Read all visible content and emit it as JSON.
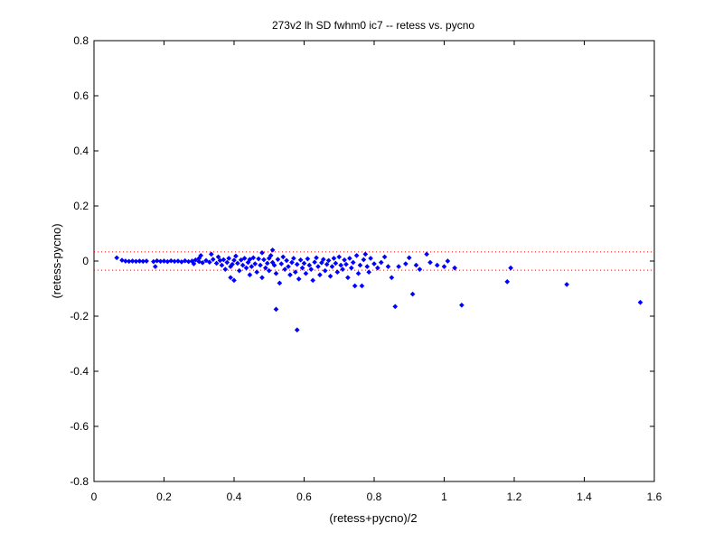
{
  "chart_data": {
    "type": "scatter",
    "title": "273v2 lh SD fwhm0 ic7 -- retess vs. pycno",
    "xlabel": "(retess+pycno)/2",
    "ylabel": "(retess-pycno)",
    "xlim": [
      0,
      1.6
    ],
    "ylim": [
      -0.8,
      0.8
    ],
    "xticks": [
      0,
      0.2,
      0.4,
      0.6,
      0.8,
      1,
      1.2,
      1.4,
      1.6
    ],
    "xtick_labels": [
      "0",
      "0.2",
      "0.4",
      "0.6",
      "0.8",
      "1",
      "1.2",
      "1.4",
      "1.6"
    ],
    "yticks": [
      -0.8,
      -0.6,
      -0.4,
      -0.2,
      0,
      0.2,
      0.4,
      0.6,
      0.8
    ],
    "ytick_labels": [
      "-0.8",
      "-0.6",
      "-0.4",
      "-0.2",
      "0",
      "0.2",
      "0.4",
      "0.6",
      "0.8"
    ],
    "grid": false,
    "reference_lines": [
      {
        "y": 0.033,
        "style": "dotted",
        "color": "#ff0000"
      },
      {
        "y": -0.033,
        "style": "dotted",
        "color": "#ff0000"
      }
    ],
    "marker_color": "#0000ff",
    "series": [
      {
        "points": [
          [
            0.065,
            0.012
          ],
          [
            0.08,
            0.003
          ],
          [
            0.09,
            0.0
          ],
          [
            0.1,
            -0.001
          ],
          [
            0.11,
            0.0
          ],
          [
            0.12,
            -0.001
          ],
          [
            0.13,
            0.0
          ],
          [
            0.14,
            -0.001
          ],
          [
            0.15,
            0.0
          ],
          [
            0.17,
            -0.002
          ],
          [
            0.175,
            -0.02
          ],
          [
            0.18,
            0.001
          ],
          [
            0.19,
            -0.001
          ],
          [
            0.2,
            0.0
          ],
          [
            0.21,
            -0.002
          ],
          [
            0.22,
            0.001
          ],
          [
            0.23,
            -0.001
          ],
          [
            0.24,
            0.0
          ],
          [
            0.25,
            -0.003
          ],
          [
            0.26,
            0.001
          ],
          [
            0.27,
            -0.002
          ],
          [
            0.28,
            0.0
          ],
          [
            0.285,
            -0.01
          ],
          [
            0.29,
            0.004
          ],
          [
            0.3,
            -0.002
          ],
          [
            0.3,
            0.01
          ],
          [
            0.305,
            0.02
          ],
          [
            0.31,
            -0.006
          ],
          [
            0.32,
            0.002
          ],
          [
            0.33,
            -0.004
          ],
          [
            0.335,
            0.025
          ],
          [
            0.34,
            0.006
          ],
          [
            0.35,
            -0.008
          ],
          [
            0.355,
            0.015
          ],
          [
            0.36,
            0.002
          ],
          [
            0.365,
            -0.015
          ],
          [
            0.37,
            0.005
          ],
          [
            0.375,
            -0.03
          ],
          [
            0.38,
            -0.005
          ],
          [
            0.385,
            0.01
          ],
          [
            0.39,
            -0.02
          ],
          [
            0.39,
            -0.06
          ],
          [
            0.395,
            -0.012
          ],
          [
            0.4,
            0.003
          ],
          [
            0.4,
            -0.07
          ],
          [
            0.405,
            0.018
          ],
          [
            0.41,
            -0.008
          ],
          [
            0.415,
            -0.035
          ],
          [
            0.42,
            0.004
          ],
          [
            0.425,
            -0.015
          ],
          [
            0.43,
            0.01
          ],
          [
            0.435,
            -0.025
          ],
          [
            0.44,
            -0.005
          ],
          [
            0.445,
            0.006
          ],
          [
            0.445,
            -0.05
          ],
          [
            0.45,
            -0.02
          ],
          [
            0.455,
            0.012
          ],
          [
            0.46,
            -0.01
          ],
          [
            0.465,
            -0.04
          ],
          [
            0.47,
            0.008
          ],
          [
            0.475,
            -0.015
          ],
          [
            0.48,
            0.03
          ],
          [
            0.48,
            -0.06
          ],
          [
            0.485,
            0.005
          ],
          [
            0.49,
            -0.025
          ],
          [
            0.495,
            -0.008
          ],
          [
            0.5,
            0.01
          ],
          [
            0.5,
            -0.035
          ],
          [
            0.505,
            0.02
          ],
          [
            0.51,
            -0.005
          ],
          [
            0.51,
            0.04
          ],
          [
            0.515,
            -0.015
          ],
          [
            0.52,
            -0.045
          ],
          [
            0.52,
            -0.175
          ],
          [
            0.525,
            0.006
          ],
          [
            0.53,
            -0.08
          ],
          [
            0.535,
            -0.01
          ],
          [
            0.54,
            0.015
          ],
          [
            0.545,
            -0.03
          ],
          [
            0.55,
            0.002
          ],
          [
            0.555,
            -0.02
          ],
          [
            0.56,
            -0.05
          ],
          [
            0.565,
            -0.005
          ],
          [
            0.57,
            0.01
          ],
          [
            0.575,
            -0.04
          ],
          [
            0.58,
            -0.012
          ],
          [
            0.58,
            -0.25
          ],
          [
            0.585,
            -0.065
          ],
          [
            0.59,
            0.004
          ],
          [
            0.595,
            -0.025
          ],
          [
            0.6,
            -0.008
          ],
          [
            0.605,
            -0.045
          ],
          [
            0.61,
            0.008
          ],
          [
            0.615,
            -0.015
          ],
          [
            0.62,
            -0.03
          ],
          [
            0.625,
            -0.07
          ],
          [
            0.63,
            -0.004
          ],
          [
            0.635,
            0.012
          ],
          [
            0.64,
            -0.02
          ],
          [
            0.645,
            -0.05
          ],
          [
            0.65,
            -0.006
          ],
          [
            0.655,
            0.006
          ],
          [
            0.66,
            -0.035
          ],
          [
            0.665,
            -0.012
          ],
          [
            0.67,
            0.002
          ],
          [
            0.675,
            -0.055
          ],
          [
            0.68,
            -0.02
          ],
          [
            0.685,
            0.01
          ],
          [
            0.69,
            -0.008
          ],
          [
            0.695,
            -0.04
          ],
          [
            0.7,
            0.015
          ],
          [
            0.705,
            -0.015
          ],
          [
            0.71,
            -0.03
          ],
          [
            0.715,
            0.004
          ],
          [
            0.72,
            -0.012
          ],
          [
            0.725,
            -0.06
          ],
          [
            0.73,
            0.01
          ],
          [
            0.735,
            -0.025
          ],
          [
            0.74,
            -0.005
          ],
          [
            0.745,
            -0.09
          ],
          [
            0.75,
            0.02
          ],
          [
            0.755,
            -0.045
          ],
          [
            0.76,
            -0.015
          ],
          [
            0.765,
            -0.09
          ],
          [
            0.77,
            0.005
          ],
          [
            0.775,
            0.025
          ],
          [
            0.78,
            -0.02
          ],
          [
            0.785,
            -0.04
          ],
          [
            0.79,
            0.01
          ],
          [
            0.8,
            -0.01
          ],
          [
            0.81,
            -0.025
          ],
          [
            0.82,
            -0.005
          ],
          [
            0.83,
            0.015
          ],
          [
            0.84,
            -0.02
          ],
          [
            0.85,
            -0.06
          ],
          [
            0.86,
            -0.165
          ],
          [
            0.87,
            -0.02
          ],
          [
            0.89,
            -0.01
          ],
          [
            0.9,
            0.012
          ],
          [
            0.91,
            -0.12
          ],
          [
            0.92,
            -0.015
          ],
          [
            0.93,
            -0.03
          ],
          [
            0.95,
            0.025
          ],
          [
            0.96,
            -0.005
          ],
          [
            0.98,
            -0.015
          ],
          [
            1.0,
            -0.02
          ],
          [
            1.01,
            0.0
          ],
          [
            1.03,
            -0.025
          ],
          [
            1.05,
            -0.16
          ],
          [
            1.18,
            -0.075
          ],
          [
            1.19,
            -0.025
          ],
          [
            1.35,
            -0.085
          ],
          [
            1.56,
            -0.15
          ]
        ]
      }
    ]
  }
}
